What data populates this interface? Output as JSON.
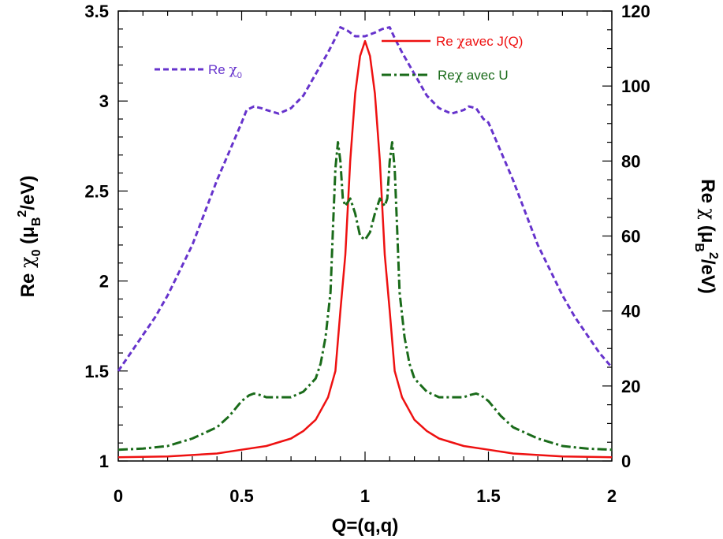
{
  "chart_data": {
    "type": "line",
    "xlabel": "Q=(q,q)",
    "ylabel_left": {
      "main": "Re ",
      "chi": "χ",
      "sub": "0",
      "paren": " (μ",
      "subB": "B",
      "sup": "2",
      "unit": "/eV)"
    },
    "ylabel_right": {
      "main": "Re ",
      "chi": "χ",
      "paren": " (μ",
      "subB": "B",
      "sup": "2",
      "unit": "/eV)"
    },
    "xlim": [
      0,
      2
    ],
    "ylim_left": [
      1,
      3.5
    ],
    "ylim_right": [
      0,
      120
    ],
    "x_ticks": [
      "0",
      "0.5",
      "1",
      "1.5",
      "2"
    ],
    "y_left_ticks": [
      "1",
      "1.5",
      "2",
      "2.5",
      "3",
      "3.5"
    ],
    "y_right_ticks": [
      "0",
      "20",
      "40",
      "60",
      "80",
      "100",
      "120"
    ],
    "grid": false,
    "series": [
      {
        "name": "Re χ0",
        "legend": {
          "main": "Re ",
          "chi": "χ",
          "sub": "0"
        },
        "axis": "left",
        "color": "#6633cc",
        "style": "dashed",
        "x": [
          0,
          0.05,
          0.1,
          0.15,
          0.2,
          0.25,
          0.3,
          0.35,
          0.4,
          0.45,
          0.5,
          0.52,
          0.55,
          0.58,
          0.6,
          0.65,
          0.7,
          0.75,
          0.8,
          0.85,
          0.88,
          0.9,
          0.93,
          0.96,
          1.0,
          1.04,
          1.07,
          1.1,
          1.12,
          1.15,
          1.2,
          1.25,
          1.3,
          1.35,
          1.4,
          1.42,
          1.45,
          1.48,
          1.5,
          1.55,
          1.6,
          1.65,
          1.7,
          1.75,
          1.8,
          1.85,
          1.9,
          1.95,
          2.0
        ],
        "y": [
          1.5,
          1.6,
          1.7,
          1.8,
          1.92,
          2.06,
          2.2,
          2.38,
          2.56,
          2.72,
          2.88,
          2.95,
          2.97,
          2.96,
          2.95,
          2.93,
          2.96,
          3.03,
          3.15,
          3.27,
          3.35,
          3.41,
          3.39,
          3.36,
          3.36,
          3.38,
          3.4,
          3.41,
          3.35,
          3.27,
          3.15,
          3.03,
          2.96,
          2.93,
          2.95,
          2.97,
          2.96,
          2.9,
          2.88,
          2.72,
          2.56,
          2.38,
          2.2,
          2.06,
          1.92,
          1.8,
          1.7,
          1.6,
          1.52
        ]
      },
      {
        "name": "Re χavec J(Q)",
        "legend": {
          "main": "Re ",
          "chi": "χ",
          "rest": "avec J(Q)"
        },
        "axis": "right",
        "color": "#ee1111",
        "style": "solid",
        "x": [
          0,
          0.2,
          0.4,
          0.5,
          0.6,
          0.7,
          0.75,
          0.8,
          0.85,
          0.88,
          0.9,
          0.92,
          0.94,
          0.96,
          0.98,
          1.0,
          1.02,
          1.04,
          1.06,
          1.08,
          1.1,
          1.12,
          1.15,
          1.2,
          1.25,
          1.3,
          1.4,
          1.5,
          1.6,
          1.8,
          2.0
        ],
        "y": [
          1,
          1.2,
          2,
          3,
          4,
          6,
          8,
          11,
          17,
          24,
          40,
          55,
          80,
          98,
          108,
          112,
          108,
          98,
          80,
          55,
          40,
          24,
          17,
          11,
          8,
          6,
          4,
          3,
          2,
          1.2,
          1
        ]
      },
      {
        "name": "Reχ avec U",
        "legend": {
          "main": "Re",
          "chi": "χ",
          "rest": "  avec U"
        },
        "axis": "right",
        "color": "#1a6b1a",
        "style": "dashdot",
        "x": [
          0,
          0.1,
          0.2,
          0.3,
          0.4,
          0.45,
          0.5,
          0.53,
          0.55,
          0.58,
          0.6,
          0.65,
          0.7,
          0.75,
          0.8,
          0.82,
          0.84,
          0.86,
          0.87,
          0.88,
          0.89,
          0.9,
          0.91,
          0.92,
          0.94,
          0.96,
          0.98,
          1.0,
          1.02,
          1.04,
          1.06,
          1.08,
          1.09,
          1.1,
          1.11,
          1.12,
          1.13,
          1.14,
          1.16,
          1.18,
          1.2,
          1.25,
          1.3,
          1.35,
          1.4,
          1.42,
          1.45,
          1.47,
          1.5,
          1.55,
          1.6,
          1.7,
          1.8,
          1.9,
          2.0
        ],
        "y": [
          3,
          3.3,
          4,
          6,
          9,
          12,
          16,
          17.5,
          18,
          17.5,
          17,
          17,
          17,
          18.5,
          22,
          26,
          33,
          45,
          62,
          78,
          85,
          80,
          70,
          68,
          70,
          66,
          60,
          59,
          61,
          66,
          70,
          68,
          70,
          80,
          85,
          78,
          62,
          45,
          33,
          26,
          22,
          18.5,
          17,
          17,
          17,
          17.5,
          18,
          17.5,
          16,
          12,
          9,
          6,
          4,
          3.3,
          3
        ]
      }
    ]
  }
}
